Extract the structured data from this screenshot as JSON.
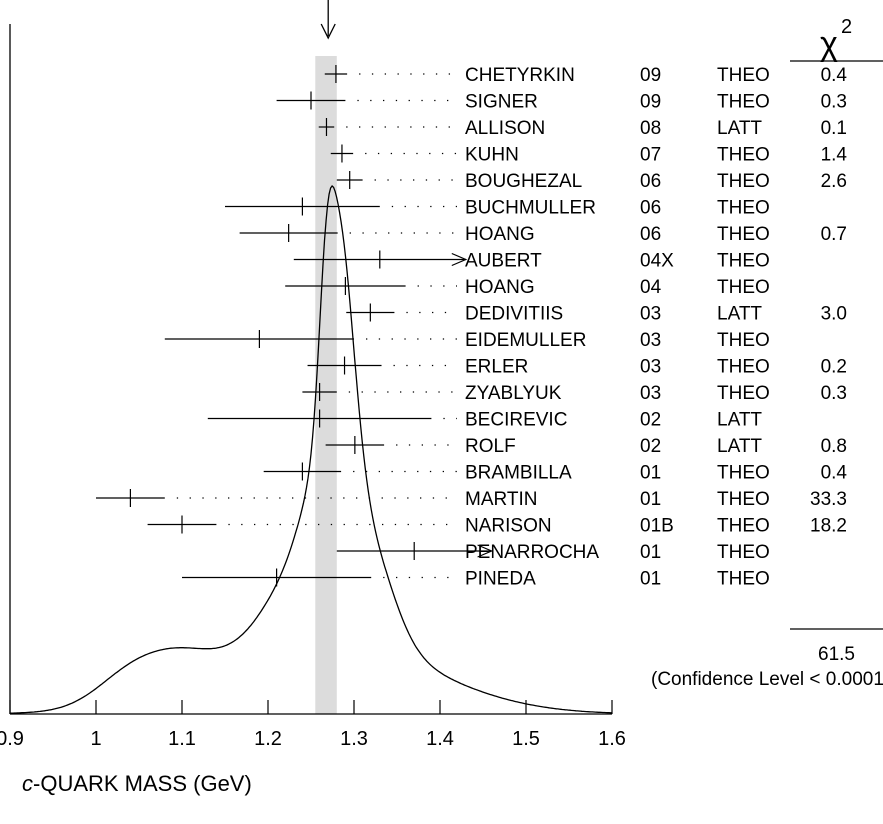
{
  "chart_data": {
    "type": "ideogram",
    "xlabel": "c-QUARK MASS (GeV)",
    "xlabel_italic_prefix": "c",
    "xlabel_rest": "-QUARK MASS (GeV)",
    "xlim": [
      0.9,
      1.6
    ],
    "xticks": [
      0.9,
      1.0,
      1.1,
      1.2,
      1.3,
      1.4,
      1.5,
      1.6
    ],
    "xtick_labels": [
      "0.9",
      "1",
      "1.1",
      "1.2",
      "1.3",
      "1.4",
      "1.5",
      "1.6"
    ],
    "average": 1.27,
    "average_band": [
      1.255,
      1.28
    ],
    "chi2_header": "χ",
    "chi2_header_sup": "2",
    "total_chi2": "61.5",
    "confidence_level": "(Confidence Level < 0.0001)",
    "measurements": [
      {
        "author": "CHETYRKIN",
        "year": "09",
        "tech": "THEO",
        "chi2": "0.4",
        "value": 1.279,
        "err": 0.013
      },
      {
        "author": "SIGNER",
        "year": "09",
        "tech": "THEO",
        "chi2": "0.3",
        "value": 1.25,
        "err": 0.04
      },
      {
        "author": "ALLISON",
        "year": "08",
        "tech": "LATT",
        "chi2": "0.1",
        "value": 1.268,
        "err": 0.009
      },
      {
        "author": "KUHN",
        "year": "07",
        "tech": "THEO",
        "chi2": "1.4",
        "value": 1.286,
        "err": 0.013
      },
      {
        "author": "BOUGHEZAL",
        "year": "06",
        "tech": "THEO",
        "chi2": "2.6",
        "value": 1.295,
        "err": 0.015
      },
      {
        "author": "BUCHMULLER",
        "year": "06",
        "tech": "THEO",
        "chi2": "",
        "value": 1.24,
        "err": 0.09
      },
      {
        "author": "HOANG",
        "year": "06",
        "tech": "THEO",
        "chi2": "0.7",
        "value": 1.224,
        "err": 0.057
      },
      {
        "author": "AUBERT",
        "year": "04X",
        "tech": "THEO",
        "chi2": "",
        "value": 1.33,
        "err": 0.1,
        "arrow": "right"
      },
      {
        "author": "HOANG",
        "year": "04",
        "tech": "THEO",
        "chi2": "",
        "value": 1.29,
        "err": 0.07
      },
      {
        "author": "DEDIVITIIS",
        "year": "03",
        "tech": "LATT",
        "chi2": "3.0",
        "value": 1.319,
        "err": 0.028
      },
      {
        "author": "EIDEMULLER",
        "year": "03",
        "tech": "THEO",
        "chi2": "",
        "value": 1.19,
        "err": 0.11
      },
      {
        "author": "ERLER",
        "year": "03",
        "tech": "THEO",
        "chi2": "0.2",
        "value": 1.289,
        "err": 0.043
      },
      {
        "author": "ZYABLYUK",
        "year": "03",
        "tech": "THEO",
        "chi2": "0.3",
        "value": 1.26,
        "err": 0.02
      },
      {
        "author": "BECIREVIC",
        "year": "02",
        "tech": "LATT",
        "chi2": "",
        "value": 1.26,
        "err": 0.13
      },
      {
        "author": "ROLF",
        "year": "02",
        "tech": "LATT",
        "chi2": "0.8",
        "value": 1.301,
        "err": 0.034
      },
      {
        "author": "BRAMBILLA",
        "year": "01",
        "tech": "THEO",
        "chi2": "0.4",
        "value": 1.24,
        "err": 0.045
      },
      {
        "author": "MARTIN",
        "year": "01",
        "tech": "THEO",
        "chi2": "33.3",
        "value": 1.04,
        "err": 0.04
      },
      {
        "author": "NARISON",
        "year": "01B",
        "tech": "THEO",
        "chi2": "18.2",
        "value": 1.1,
        "err": 0.04
      },
      {
        "author": "PENARROCHA",
        "year": "01",
        "tech": "THEO",
        "chi2": "",
        "value": 1.37,
        "err": 0.09,
        "arrow": "right"
      },
      {
        "author": "PINEDA",
        "year": "01",
        "tech": "THEO",
        "chi2": "",
        "value": 1.21,
        "err": 0.11
      }
    ]
  }
}
